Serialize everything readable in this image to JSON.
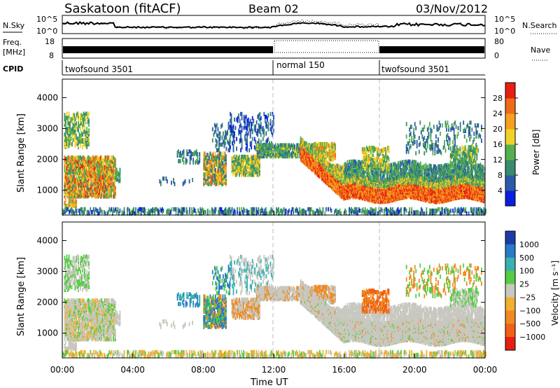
{
  "chart_data": {
    "type": "heatmap",
    "header": {
      "station": "Saskatoon (fitACF)",
      "beam": "Beam 02",
      "date": "03/Nov/2012"
    },
    "panels": [
      {
        "name": "noise",
        "left_label": "N.Sky",
        "left_ticks": [
          "10^5",
          "10^0"
        ],
        "right_ticks": [
          "10^5",
          "10^0"
        ],
        "right_legend": "N.Search"
      },
      {
        "name": "frequency",
        "left_label_1": "Freq.",
        "left_label_2": "[MHz]",
        "left_ticks": [
          18,
          8
        ],
        "right_ticks": [
          80,
          0
        ],
        "right_legend": "Nave"
      },
      {
        "name": "cpid",
        "label": "CPID",
        "segments": [
          {
            "name": "twofsound 3501",
            "start": "00:00",
            "end": "12:00"
          },
          {
            "name": "normal 150",
            "start": "12:00",
            "end": "18:00"
          },
          {
            "name": "twofsound 3501",
            "start": "18:00",
            "end": "24:00"
          }
        ]
      }
    ],
    "xlabel": "Time UT",
    "x_ticks": [
      "00:00",
      "04:00",
      "08:00",
      "12:00",
      "16:00",
      "20:00",
      "00:00"
    ],
    "ylabel": "Slant Range [km]",
    "y_ticks": [
      1000,
      2000,
      3000,
      4000
    ],
    "ylim": [
      200,
      4600
    ],
    "power": {
      "colorbar_label": "Power [dB]",
      "ticks": [
        4,
        8,
        12,
        16,
        20,
        24,
        28
      ],
      "colors": [
        "#0b1ee0",
        "#2a5aa8",
        "#3a8a6e",
        "#55b050",
        "#f0d22a",
        "#f5a020",
        "#f06a18",
        "#e81e10"
      ]
    },
    "velocity": {
      "colorbar_label": "Velocity [m s⁻¹]",
      "ticks": [
        "1000",
        "500",
        "100",
        "25",
        "−25",
        "−100",
        "−500",
        "−1000"
      ],
      "colors": [
        "#1e3ca8",
        "#2a7ac8",
        "#3ab0b0",
        "#55cc44",
        "#c8c8c0",
        "#f0b030",
        "#f08a20",
        "#f06018",
        "#e81e10"
      ]
    },
    "dashed_lines_ut": [
      "12:00",
      "18:00"
    ]
  }
}
